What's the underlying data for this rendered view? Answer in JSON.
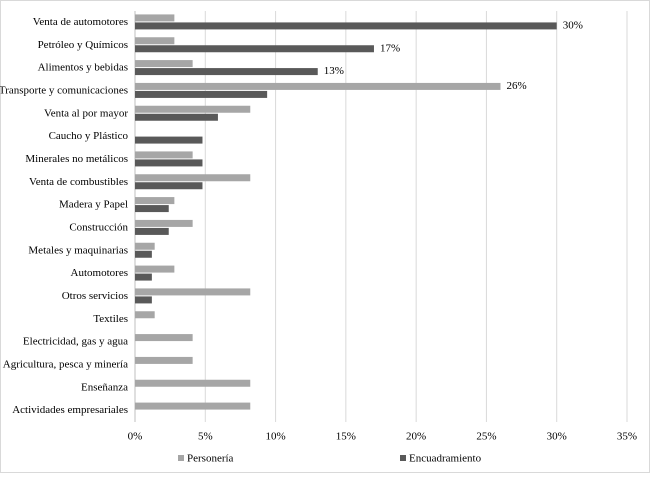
{
  "chart_data": {
    "type": "hbar",
    "categories": [
      "Venta de automotores",
      "Petróleo y Químicos",
      "Alimentos y bebidas",
      "Transporte y comunicaciones",
      "Venta al por mayor",
      "Caucho y Plástico",
      "Minerales no metálicos",
      "Venta de combustibles",
      "Madera y Papel",
      "Construcción",
      "Metales y maquinarias",
      "Automotores",
      "Otros servicios",
      "Textiles",
      "Electricidad, gas y agua",
      "Agricultura, pesca y minería",
      "Enseñanza",
      "Actividades empresariales"
    ],
    "series": [
      {
        "name": "Personería",
        "color": "#a6a6a6",
        "values": [
          2.8,
          2.8,
          4.1,
          26,
          8.2,
          null,
          4.1,
          8.2,
          2.8,
          4.1,
          1.4,
          2.8,
          8.2,
          1.4,
          4.1,
          4.1,
          8.2,
          8.2
        ],
        "value_labels": [
          null,
          null,
          null,
          "26%",
          null,
          null,
          null,
          null,
          null,
          null,
          null,
          null,
          null,
          null,
          null,
          null,
          null,
          null
        ]
      },
      {
        "name": "Encuadramiento",
        "color": "#595959",
        "values": [
          30,
          17,
          13,
          9.4,
          5.9,
          4.8,
          4.8,
          4.8,
          2.4,
          2.4,
          1.2,
          1.2,
          1.2,
          null,
          null,
          null,
          null,
          null
        ],
        "value_labels": [
          "30%",
          "17%",
          "13%",
          null,
          null,
          null,
          null,
          null,
          null,
          null,
          null,
          null,
          null,
          null,
          null,
          null,
          null,
          null
        ]
      }
    ],
    "xlim": [
      0,
      35
    ],
    "xticks": [
      {
        "value": 0,
        "label": "0%"
      },
      {
        "value": 5,
        "label": "5%"
      },
      {
        "value": 10,
        "label": "10%"
      },
      {
        "value": 15,
        "label": "15%"
      },
      {
        "value": 20,
        "label": "20%"
      },
      {
        "value": 25,
        "label": "25%"
      },
      {
        "value": 30,
        "label": "30%"
      },
      {
        "value": 35,
        "label": "35%"
      }
    ],
    "grid": true,
    "legend": "bottom"
  }
}
